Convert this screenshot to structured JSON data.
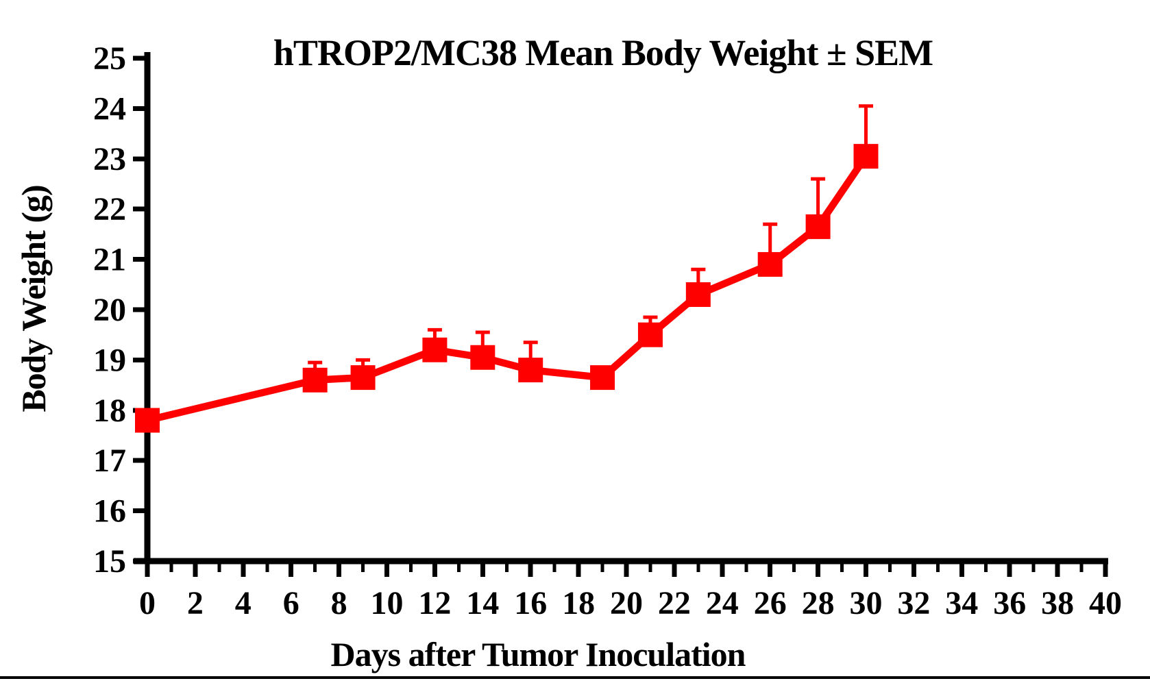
{
  "figure": {
    "background": "#FFFFFF",
    "bottom_rule_color": "#000000",
    "axis_color": "#000000",
    "text_color": "#000000"
  },
  "chart_data": {
    "type": "line",
    "title": "hTROP2/MC38 Mean Body Weight ± SEM",
    "xlabel": "Days after Tumor Inoculation",
    "ylabel": "Body Weight (g)",
    "grid": false,
    "legend": "none",
    "error_bars": "SEM, upper caps only",
    "x_axis": {
      "min": 0,
      "max": 40,
      "major_step": 2,
      "minor_step": 1,
      "tick_labels": [
        "0",
        "2",
        "4",
        "6",
        "8",
        "10",
        "12",
        "14",
        "16",
        "18",
        "20",
        "22",
        "24",
        "26",
        "28",
        "30",
        "32",
        "34",
        "36",
        "38",
        "40"
      ]
    },
    "y_axis": {
      "min": 15,
      "max": 25,
      "step": 1,
      "tick_labels": [
        "15",
        "16",
        "17",
        "18",
        "19",
        "20",
        "21",
        "22",
        "23",
        "24",
        "25"
      ]
    },
    "series": [
      {
        "name": "hTROP2/MC38 mean body weight",
        "color": "#FF0000",
        "marker": "filled-square",
        "x": [
          0,
          7,
          9,
          12,
          14,
          16,
          19,
          21,
          23,
          26,
          28,
          30
        ],
        "y": [
          17.8,
          18.6,
          18.65,
          19.2,
          19.05,
          18.8,
          18.65,
          19.5,
          20.3,
          20.9,
          21.65,
          23.05
        ],
        "sem": [
          0,
          0.35,
          0.35,
          0.4,
          0.5,
          0.55,
          0,
          0.35,
          0.5,
          0.8,
          0.95,
          1.0
        ]
      }
    ]
  }
}
